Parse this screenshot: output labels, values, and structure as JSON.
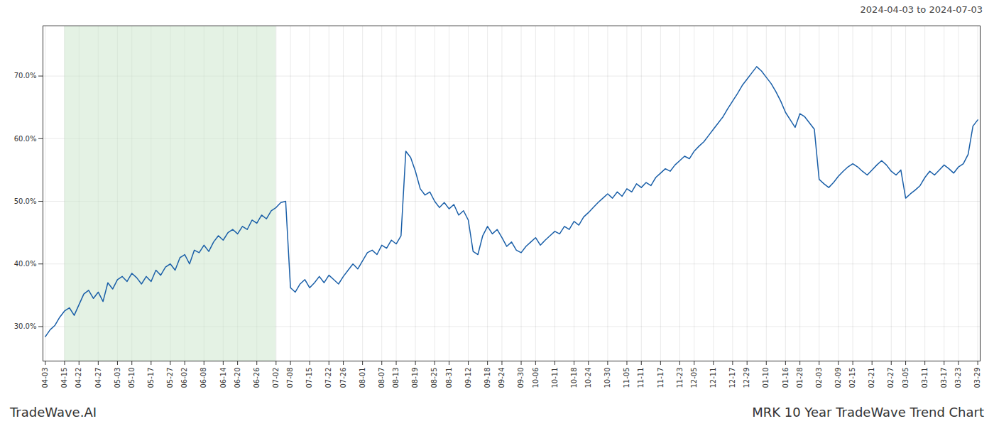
{
  "chart_data": {
    "type": "line",
    "title": "MRK 10 Year TradeWave Trend Chart",
    "subtitle": "2024-04-03 to 2024-07-03",
    "caption": "TradeWave.AI",
    "color": "#1a5fa8",
    "grid": true,
    "ylim": [
      0.245,
      0.78
    ],
    "yticks": [
      {
        "value": 0.3,
        "label": "30.0%"
      },
      {
        "value": 0.4,
        "label": "40.0%"
      },
      {
        "value": 0.5,
        "label": "50.0%"
      },
      {
        "value": 0.6,
        "label": "60.0%"
      },
      {
        "value": 0.7,
        "label": "70.0%"
      }
    ],
    "shade": {
      "start": "04-15",
      "end": "07-02",
      "color": "#cde8cd"
    },
    "categories": [
      "04-03",
      null,
      null,
      null,
      "04-15",
      null,
      null,
      "04-22",
      null,
      null,
      null,
      "04-27",
      null,
      null,
      null,
      "05-03",
      null,
      null,
      "05-10",
      null,
      null,
      null,
      "05-17",
      null,
      null,
      null,
      "05-27",
      null,
      null,
      "06-02",
      null,
      null,
      null,
      "06-08",
      null,
      null,
      null,
      "06-14",
      null,
      null,
      "06-20",
      null,
      null,
      null,
      "06-26",
      null,
      null,
      null,
      "07-02",
      null,
      null,
      "07-08",
      null,
      null,
      null,
      "07-15",
      null,
      null,
      null,
      "07-22",
      null,
      null,
      "07-26",
      null,
      null,
      null,
      "08-01",
      null,
      null,
      null,
      "08-07",
      null,
      null,
      "08-13",
      null,
      null,
      null,
      "08-19",
      null,
      null,
      null,
      "08-25",
      null,
      null,
      "08-31",
      null,
      null,
      null,
      "09-12",
      null,
      null,
      null,
      "09-18",
      null,
      null,
      "09-24",
      null,
      null,
      null,
      "09-30",
      null,
      null,
      "10-06",
      null,
      null,
      null,
      "10-11",
      null,
      null,
      null,
      "10-18",
      null,
      null,
      "10-24",
      null,
      null,
      null,
      "10-30",
      null,
      null,
      null,
      "11-05",
      null,
      null,
      "11-11",
      null,
      null,
      null,
      "11-17",
      null,
      null,
      null,
      "11-23",
      null,
      null,
      "12-05",
      null,
      null,
      null,
      "12-11",
      null,
      null,
      null,
      "12-17",
      null,
      null,
      "12-29",
      null,
      null,
      null,
      "01-10",
      null,
      null,
      null,
      "01-16",
      null,
      null,
      "01-28",
      null,
      null,
      null,
      "02-03",
      null,
      null,
      null,
      "02-09",
      null,
      null,
      "02-15",
      null,
      null,
      null,
      "02-21",
      null,
      null,
      null,
      "02-27",
      null,
      null,
      "03-05",
      null,
      null,
      null,
      "03-11",
      null,
      null,
      null,
      "03-17",
      null,
      null,
      "03-23",
      null,
      null,
      null,
      "03-29"
    ],
    "values": [
      0.284,
      0.295,
      0.302,
      0.315,
      0.325,
      0.33,
      0.318,
      0.335,
      0.352,
      0.358,
      0.345,
      0.355,
      0.34,
      0.37,
      0.36,
      0.375,
      0.38,
      0.372,
      0.385,
      0.378,
      0.368,
      0.38,
      0.372,
      0.39,
      0.382,
      0.395,
      0.4,
      0.39,
      0.41,
      0.415,
      0.4,
      0.422,
      0.418,
      0.43,
      0.42,
      0.435,
      0.445,
      0.438,
      0.45,
      0.455,
      0.448,
      0.46,
      0.455,
      0.47,
      0.465,
      0.478,
      0.472,
      0.485,
      0.49,
      0.498,
      0.5,
      0.362,
      0.355,
      0.368,
      0.375,
      0.362,
      0.37,
      0.38,
      0.37,
      0.382,
      0.375,
      0.368,
      0.38,
      0.39,
      0.4,
      0.392,
      0.405,
      0.418,
      0.422,
      0.415,
      0.43,
      0.425,
      0.438,
      0.432,
      0.445,
      0.58,
      0.57,
      0.548,
      0.52,
      0.51,
      0.515,
      0.5,
      0.49,
      0.498,
      0.488,
      0.495,
      0.478,
      0.485,
      0.47,
      0.42,
      0.415,
      0.445,
      0.46,
      0.448,
      0.455,
      0.442,
      0.428,
      0.435,
      0.422,
      0.418,
      0.428,
      0.435,
      0.442,
      0.43,
      0.438,
      0.445,
      0.452,
      0.448,
      0.46,
      0.455,
      0.468,
      0.462,
      0.475,
      0.482,
      0.49,
      0.498,
      0.505,
      0.512,
      0.505,
      0.515,
      0.508,
      0.52,
      0.515,
      0.528,
      0.522,
      0.53,
      0.525,
      0.538,
      0.545,
      0.552,
      0.548,
      0.558,
      0.565,
      0.572,
      0.568,
      0.58,
      0.588,
      0.595,
      0.605,
      0.615,
      0.625,
      0.635,
      0.648,
      0.66,
      0.672,
      0.685,
      0.695,
      0.705,
      0.715,
      0.708,
      0.698,
      0.688,
      0.675,
      0.66,
      0.642,
      0.63,
      0.618,
      0.64,
      0.635,
      0.625,
      0.615,
      0.535,
      0.528,
      0.522,
      0.53,
      0.54,
      0.548,
      0.555,
      0.56,
      0.555,
      0.548,
      0.542,
      0.55,
      0.558,
      0.565,
      0.558,
      0.548,
      0.542,
      0.55,
      0.505,
      0.512,
      0.518,
      0.525,
      0.538,
      0.548,
      0.542,
      0.55,
      0.558,
      0.552,
      0.545,
      0.555,
      0.56,
      0.575,
      0.62,
      0.63
    ]
  }
}
